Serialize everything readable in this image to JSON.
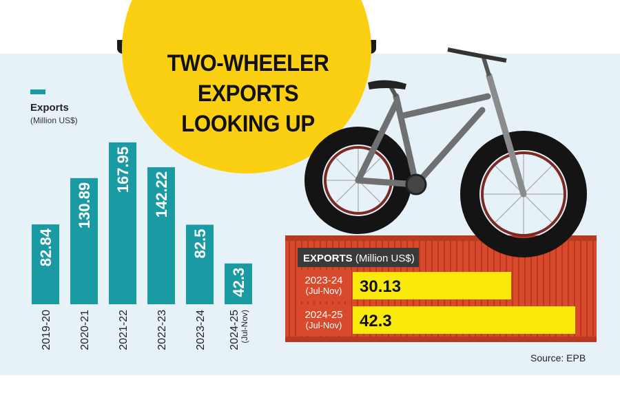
{
  "title_lines": [
    "TWO-WHEELER",
    "EXPORTS",
    "LOOKING UP"
  ],
  "legend": {
    "label": "Exports",
    "unit": "(Million US$)"
  },
  "chart_data": [
    {
      "type": "bar",
      "title": "Exports (Million US$)",
      "categories": [
        "2019-20",
        "2020-21",
        "2021-22",
        "2022-23",
        "2023-24",
        "2024-25 (Jul-Nov)"
      ],
      "category_lines": [
        [
          "2019-20"
        ],
        [
          "2020-21"
        ],
        [
          "2021-22"
        ],
        [
          "2022-23"
        ],
        [
          "2023-24"
        ],
        [
          "2024-25",
          "(Jul-Nov)"
        ]
      ],
      "values": [
        82.84,
        130.89,
        167.95,
        142.22,
        82.5,
        42.3
      ],
      "value_labels": [
        "82.84",
        "130.89",
        "167.95",
        "142.22",
        "82.5",
        "42.3"
      ],
      "ylabel": "Exports (Million US$)",
      "ylim": [
        0,
        180
      ],
      "color": "#1a9aa3"
    },
    {
      "type": "bar",
      "orientation": "horizontal",
      "header": {
        "bold": "EXPORTS",
        "unit": "(Million US$)"
      },
      "categories": [
        "2023-24 (Jul-Nov)",
        "2024-25 (Jul-Nov)"
      ],
      "category_lines": [
        [
          "2023-24",
          "(Jul-Nov)"
        ],
        [
          "2024-25",
          "(Jul-Nov)"
        ]
      ],
      "values": [
        30.13,
        42.3
      ],
      "value_labels": [
        "30.13",
        "42.3"
      ],
      "xlim": [
        0,
        42.3
      ],
      "color": "#f9ea0c"
    }
  ],
  "source": "Source: EPB",
  "colors": {
    "teal": "#1a9aa3",
    "yellow": "#fbd012",
    "container": "#d94a2c",
    "panel": "#e6f2f8"
  },
  "bicycle": {
    "icon": "fat-tire-bicycle-icon"
  }
}
